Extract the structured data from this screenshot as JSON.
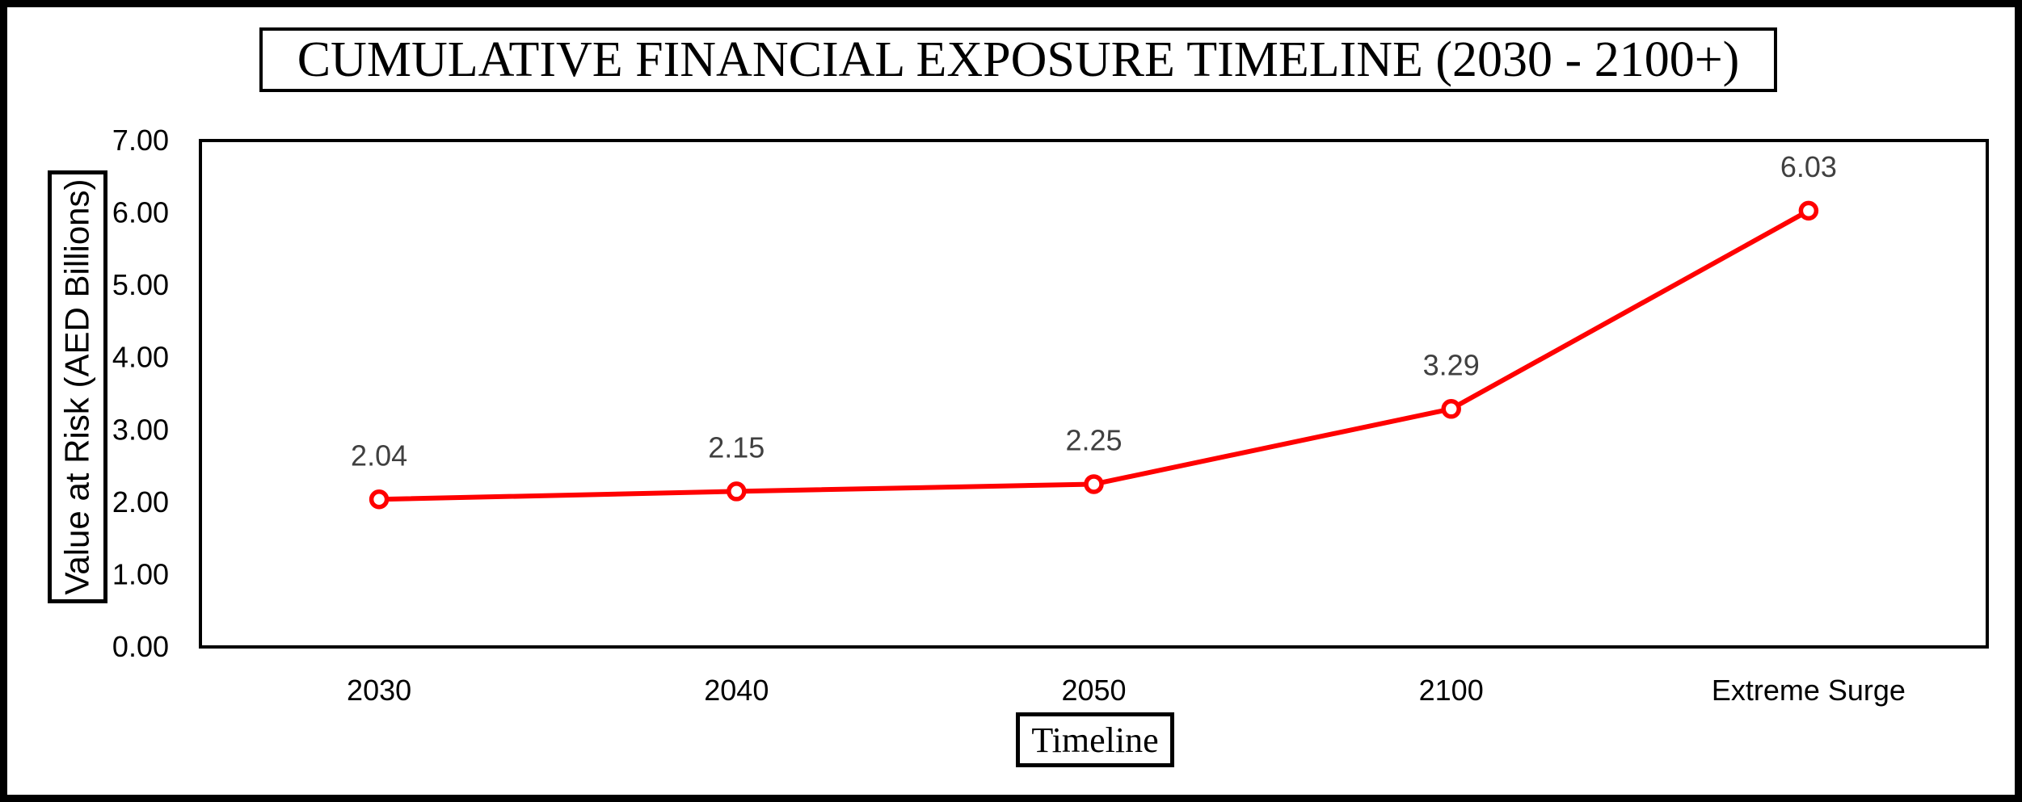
{
  "page": {
    "background_color": "#ffffff",
    "frame_color": "#000000"
  },
  "chart_data": {
    "type": "line",
    "title": "CUMULATIVE FINANCIAL EXPOSURE TIMELINE (2030 - 2100+)",
    "xlabel": "Timeline",
    "ylabel": "Value at Risk (AED Billions)",
    "categories": [
      "2030",
      "2040",
      "2050",
      "2100",
      "Extreme Surge"
    ],
    "values": [
      2.04,
      2.15,
      2.25,
      3.29,
      6.03
    ],
    "data_labels": [
      "2.04",
      "2.15",
      "2.25",
      "3.29",
      "6.03"
    ],
    "y_ticks": [
      "0.00",
      "1.00",
      "2.00",
      "3.00",
      "4.00",
      "5.00",
      "6.00",
      "7.00"
    ],
    "ylim": [
      0,
      7
    ],
    "grid": false,
    "legend_position": "none",
    "line_color": "#ff0000",
    "marker_fill": "#ffffff",
    "marker_stroke": "#ff0000",
    "data_label_color": "#404040",
    "axis_color": "#000000"
  }
}
